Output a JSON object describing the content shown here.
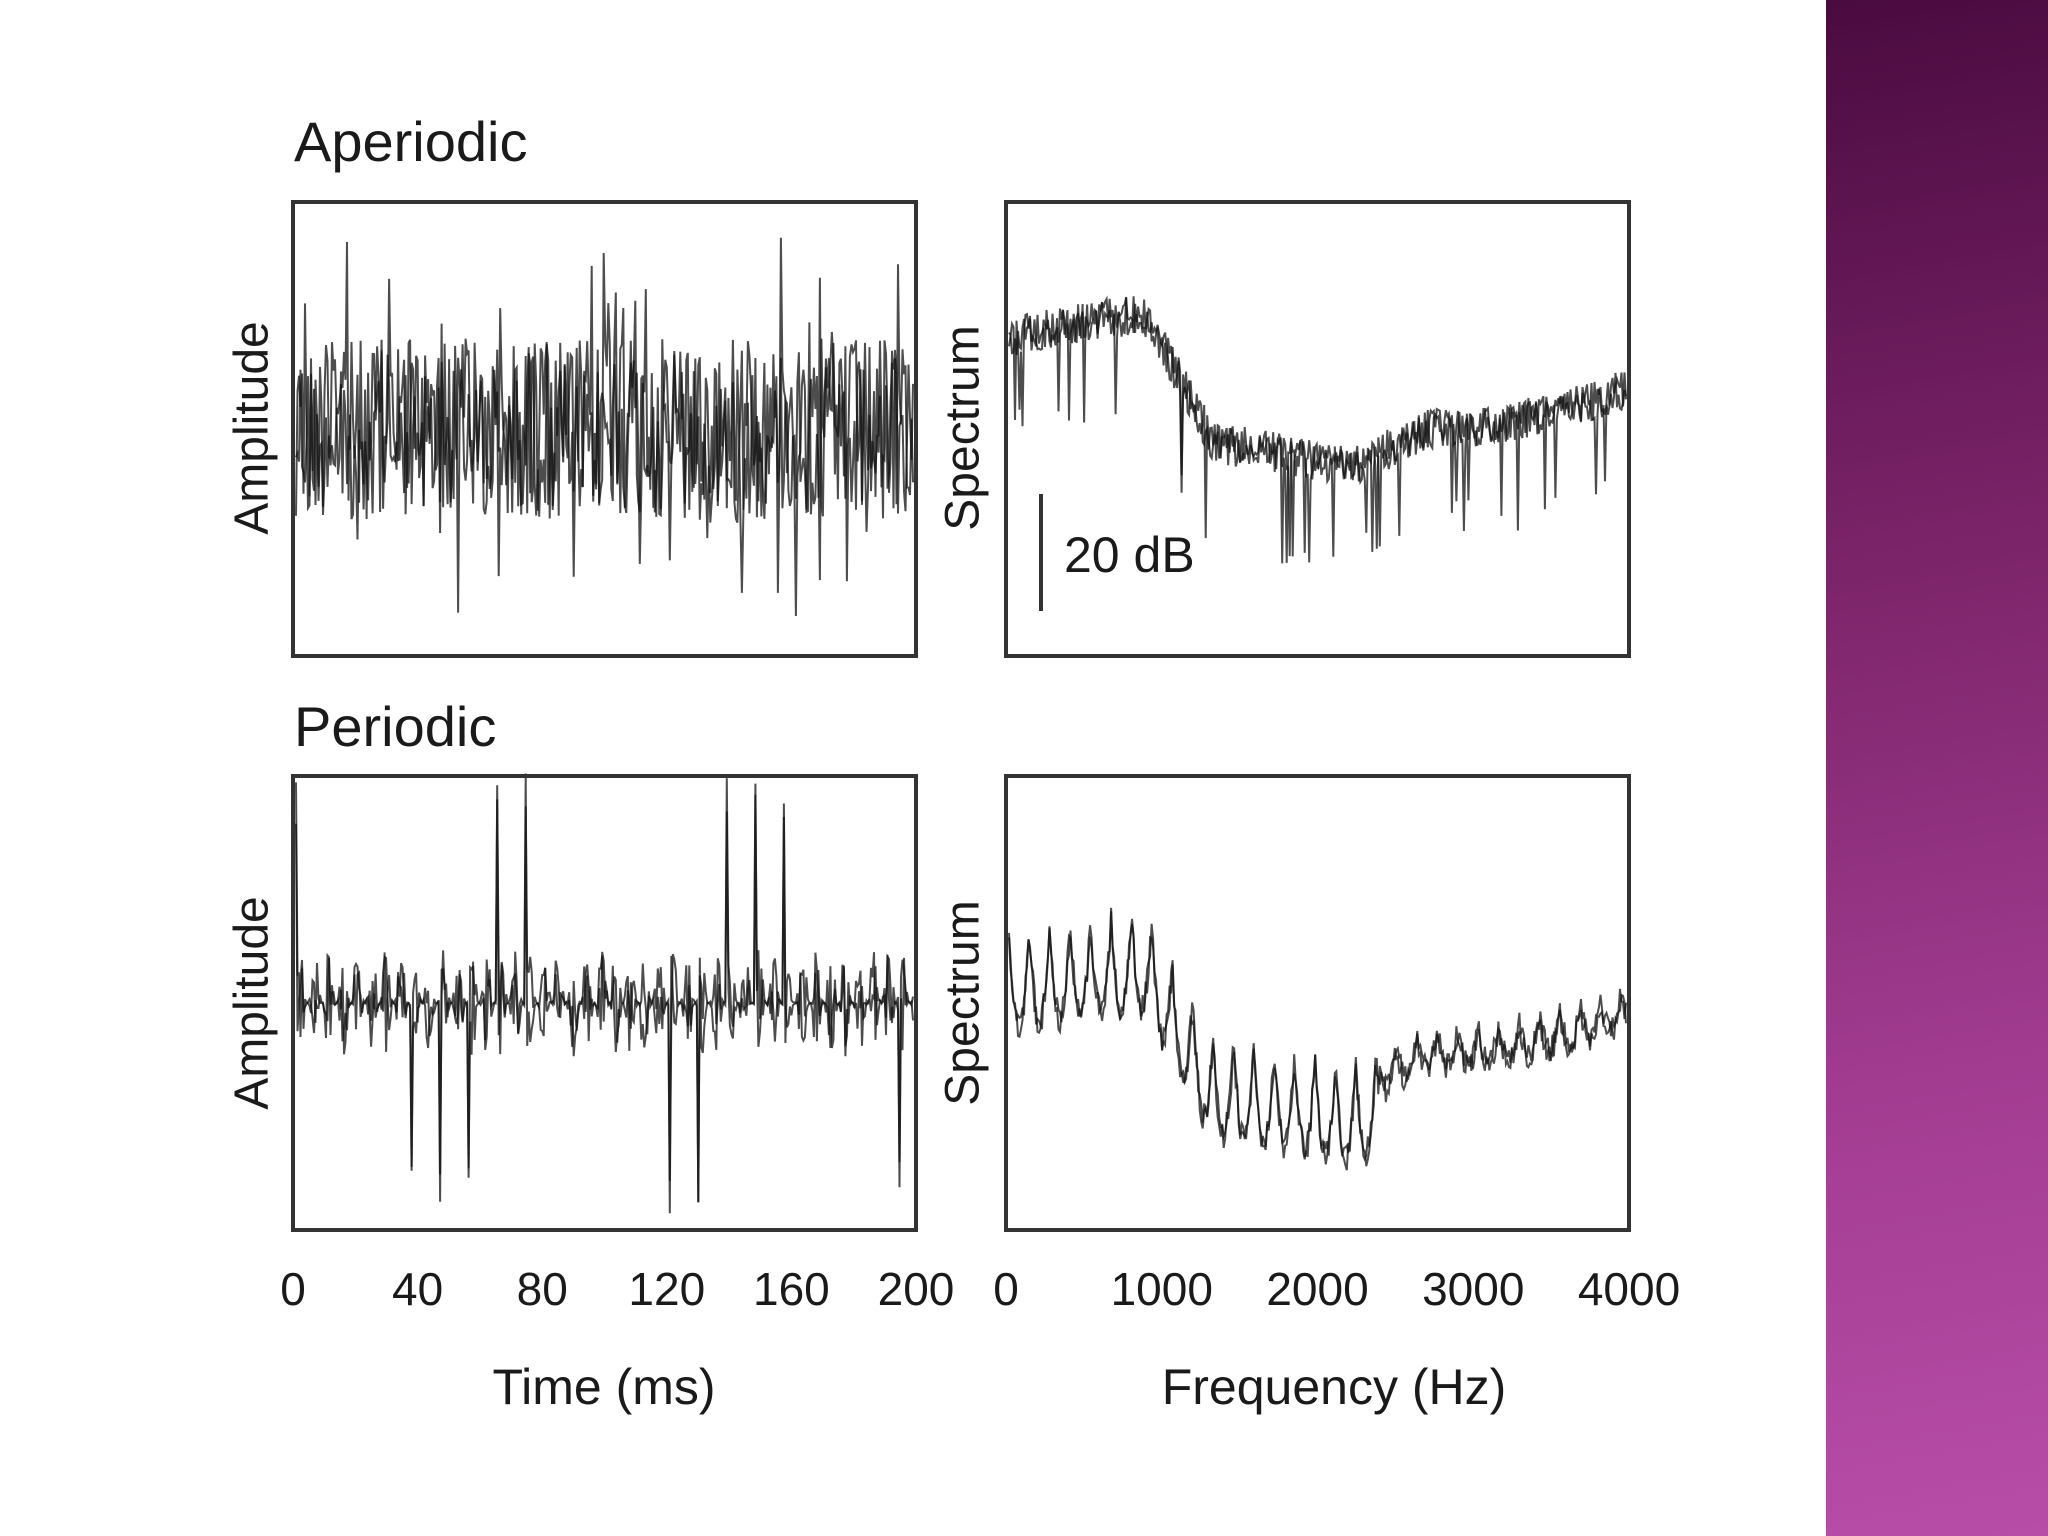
{
  "figure": {
    "rows": [
      {
        "title": "Aperiodic",
        "left_y_label": "Amplitude",
        "right_y_label": "Spectrum"
      },
      {
        "title": "Periodic",
        "left_y_label": "Amplitude",
        "right_y_label": "Spectrum"
      }
    ],
    "scale_bar_label": "20 dB",
    "time_axis": {
      "ticks": [
        0,
        40,
        80,
        120,
        160,
        200
      ],
      "label": "Time (ms)"
    },
    "frequency_axis": {
      "ticks": [
        0,
        1000,
        2000,
        3000,
        4000
      ],
      "label": "Frequency (Hz)"
    }
  }
}
